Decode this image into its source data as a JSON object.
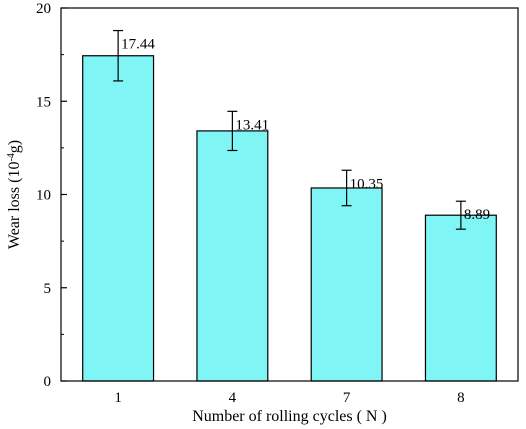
{
  "chart_data": {
    "type": "bar",
    "title": "",
    "categories": [
      "1",
      "4",
      "7",
      "8"
    ],
    "values": [
      17.44,
      13.41,
      10.35,
      8.89
    ],
    "error": [
      1.35,
      1.05,
      0.95,
      0.75
    ],
    "data_labels": [
      "17.44",
      "13.41",
      "10.35",
      "8.89"
    ],
    "xlabel": "Number of rolling cycles ( N )",
    "ylabel": {
      "main": "Wear loss (10",
      "sup": "-4",
      "unit": "g)"
    },
    "ylim": [
      0,
      20
    ],
    "yticks": [
      "0",
      "5",
      "10",
      "15",
      "20"
    ],
    "grid": false,
    "legend": "none",
    "colors": {
      "bar_fill": "#7ff5f5",
      "bar_stroke": "#000000",
      "axis": "#000000"
    }
  }
}
